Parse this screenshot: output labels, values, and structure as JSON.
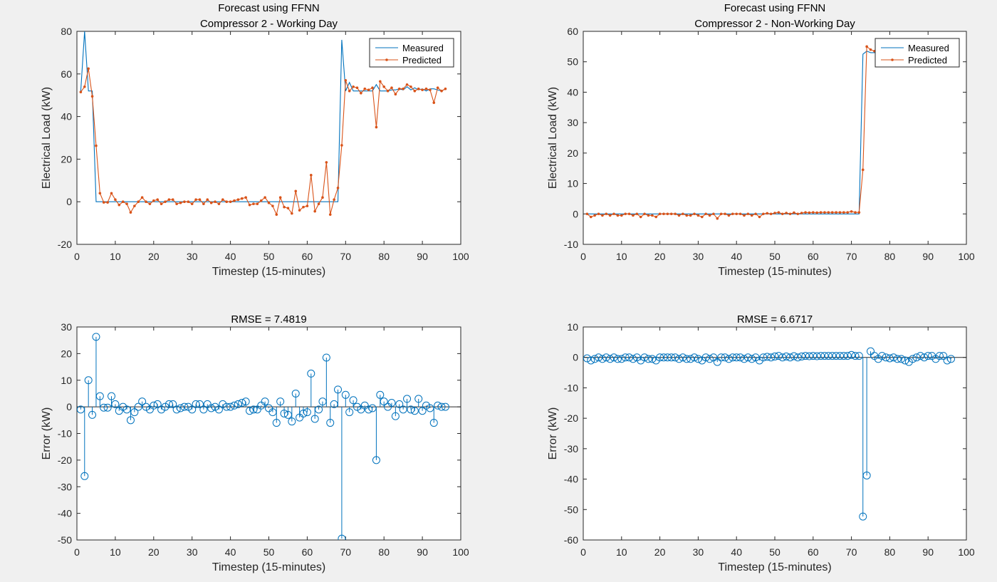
{
  "window": {
    "background": "#f0f0f0"
  },
  "colors": {
    "measured": "#0072BD",
    "predicted": "#D95319",
    "axis": "#262626"
  },
  "chart_data": [
    {
      "id": "top-left",
      "type": "line",
      "title_lines": [
        "Forecast using FFNN",
        "Compressor 2 - Working Day"
      ],
      "xlabel": "Timestep (15-minutes)",
      "ylabel": "Electrical Load (kW)",
      "xlim": [
        0,
        100
      ],
      "ylim": [
        -20,
        80
      ],
      "xticks": [
        0,
        10,
        20,
        30,
        40,
        50,
        60,
        70,
        80,
        90,
        100
      ],
      "yticks": [
        -20,
        0,
        20,
        40,
        60,
        80
      ],
      "legend": {
        "location": "top-right",
        "entries": [
          "Measured",
          "Predicted"
        ]
      },
      "series": [
        {
          "name": "Measured",
          "style": "line",
          "x": [
            1,
            2,
            3,
            4,
            5,
            68,
            69,
            70,
            71,
            72,
            73,
            74,
            75,
            76,
            77,
            78,
            79,
            80,
            81,
            82,
            83,
            84,
            85,
            86,
            87,
            88,
            89,
            90,
            91,
            92,
            93,
            94,
            95,
            96
          ],
          "y": [
            52,
            80,
            52,
            52,
            0,
            0,
            76,
            52,
            56,
            52,
            52,
            52,
            52,
            52,
            52,
            55,
            52,
            52,
            52,
            52.5,
            52.5,
            53,
            52.5,
            54,
            52.5,
            53.5,
            52.5,
            53,
            52,
            53,
            53,
            52.5,
            52,
            53
          ]
        },
        {
          "name": "Predicted",
          "style": "line-dot",
          "x": [
            1,
            2,
            3,
            4,
            5,
            6,
            7,
            8,
            9,
            10,
            11,
            12,
            13,
            14,
            15,
            16,
            17,
            18,
            19,
            20,
            21,
            22,
            23,
            24,
            25,
            26,
            27,
            28,
            29,
            30,
            31,
            32,
            33,
            34,
            35,
            36,
            37,
            38,
            39,
            40,
            41,
            42,
            43,
            44,
            45,
            46,
            47,
            48,
            49,
            50,
            51,
            52,
            53,
            54,
            55,
            56,
            57,
            58,
            59,
            60,
            61,
            62,
            63,
            64,
            65,
            66,
            67,
            68,
            69,
            70,
            71,
            72,
            73,
            74,
            75,
            76,
            77,
            78,
            79,
            80,
            81,
            82,
            83,
            84,
            85,
            86,
            87,
            88,
            89,
            90,
            91,
            92,
            93,
            94,
            95,
            96
          ],
          "y": [
            51.5,
            54,
            62.5,
            49.5,
            26.3,
            4,
            -0.3,
            -0.3,
            4,
            1,
            -1.5,
            0,
            -1,
            -5,
            -2,
            0,
            2,
            0,
            -1,
            0.5,
            1,
            -1,
            0,
            1,
            1,
            -1,
            -0.5,
            0,
            0,
            -1,
            1,
            1,
            -1,
            1,
            -0.5,
            0,
            -1,
            1,
            0,
            0,
            0.5,
            1,
            1.5,
            2,
            -1.5,
            -1,
            -1,
            0.5,
            2,
            -0.5,
            -2,
            -6,
            2,
            -2.5,
            -3,
            -5.5,
            5,
            -4,
            -2.5,
            -2,
            12.5,
            -4.5,
            -1,
            2,
            18.5,
            -6,
            1,
            6.5,
            26.5,
            57,
            52,
            54,
            53.5,
            51,
            53,
            52.5,
            53.5,
            35,
            56.5,
            54,
            52,
            53.5,
            50.5,
            53,
            53,
            55,
            54,
            52,
            53,
            52.5,
            53,
            52.5,
            46.5,
            53.5,
            52,
            53
          ]
        }
      ]
    },
    {
      "id": "top-right",
      "type": "line",
      "title_lines": [
        "Forecast using FFNN",
        "Compressor 2 - Non-Working Day"
      ],
      "xlabel": "Timestep (15-minutes)",
      "ylabel": "Electrical Load (kW)",
      "xlim": [
        0,
        100
      ],
      "ylim": [
        -10,
        60
      ],
      "xticks": [
        0,
        10,
        20,
        30,
        40,
        50,
        60,
        70,
        80,
        90,
        100
      ],
      "yticks": [
        -10,
        0,
        10,
        20,
        30,
        40,
        50,
        60
      ],
      "legend": {
        "location": "top-right",
        "entries": [
          "Measured",
          "Predicted"
        ]
      },
      "series": [
        {
          "name": "Measured",
          "style": "line",
          "x": [
            1,
            72,
            73,
            74,
            75,
            76,
            77,
            78,
            79,
            80,
            81,
            82,
            83,
            84,
            85,
            86,
            87,
            88,
            89,
            90,
            91,
            92,
            93,
            94,
            95,
            96
          ],
          "y": [
            0,
            0,
            52.5,
            53.5,
            53,
            53,
            53,
            53,
            53,
            53,
            53,
            53,
            53,
            53,
            53,
            53,
            53,
            53,
            53,
            53,
            53,
            53,
            53,
            53,
            53,
            53
          ]
        },
        {
          "name": "Predicted",
          "style": "line-dot",
          "x": [
            1,
            2,
            3,
            4,
            5,
            6,
            7,
            8,
            9,
            10,
            11,
            12,
            13,
            14,
            15,
            16,
            17,
            18,
            19,
            20,
            21,
            22,
            23,
            24,
            25,
            26,
            27,
            28,
            29,
            30,
            31,
            32,
            33,
            34,
            35,
            36,
            37,
            38,
            39,
            40,
            41,
            42,
            43,
            44,
            45,
            46,
            47,
            48,
            49,
            50,
            51,
            52,
            53,
            54,
            55,
            56,
            57,
            58,
            59,
            60,
            61,
            62,
            63,
            64,
            65,
            66,
            67,
            68,
            69,
            70,
            71,
            72,
            73,
            74,
            75,
            76,
            77,
            78,
            79,
            80,
            81,
            82,
            83,
            84,
            85,
            86,
            87,
            88,
            89,
            90,
            91,
            92,
            93,
            94,
            95,
            96
          ],
          "y": [
            0,
            -1,
            -0.5,
            0,
            -0.5,
            0,
            -0.5,
            0,
            -0.5,
            -0.5,
            0,
            0,
            -0.5,
            0,
            -1,
            0,
            -0.5,
            -0.5,
            -1,
            0,
            0,
            0,
            0,
            0,
            -0.5,
            0,
            -0.5,
            -0.5,
            0,
            -0.5,
            -1,
            0,
            -0.5,
            0,
            -1.5,
            0,
            0,
            -0.5,
            0,
            0,
            0,
            -0.5,
            0,
            -0.5,
            0,
            -1,
            0,
            0.2,
            0,
            0.3,
            0.5,
            0,
            0.3,
            0,
            0.4,
            0,
            0.3,
            0.5,
            0.4,
            0.5,
            0.4,
            0.5,
            0.5,
            0.5,
            0.5,
            0.5,
            0.5,
            0.5,
            0.5,
            0.8,
            0.5,
            0.5,
            14.5,
            55,
            54,
            53.5,
            53,
            52.5,
            53.5,
            53,
            53,
            53.5,
            52.5,
            53,
            52.5,
            53,
            53.5,
            52.5,
            53,
            53,
            52.5,
            53,
            52.5,
            52.5,
            53.5,
            53
          ]
        }
      ]
    },
    {
      "id": "bottom-left",
      "type": "stem",
      "title_lines": [
        "RMSE = 7.4819"
      ],
      "xlabel": "Timestep (15-minutes)",
      "ylabel": "Error (kW)",
      "xlim": [
        0,
        100
      ],
      "ylim": [
        -50,
        30
      ],
      "xticks": [
        0,
        10,
        20,
        30,
        40,
        50,
        60,
        70,
        80,
        90,
        100
      ],
      "yticks": [
        -50,
        -40,
        -30,
        -20,
        -10,
        0,
        10,
        20,
        30
      ],
      "series": [
        {
          "name": "Error",
          "style": "stem",
          "x": [
            1,
            2,
            3,
            4,
            5,
            6,
            7,
            8,
            9,
            10,
            11,
            12,
            13,
            14,
            15,
            16,
            17,
            18,
            19,
            20,
            21,
            22,
            23,
            24,
            25,
            26,
            27,
            28,
            29,
            30,
            31,
            32,
            33,
            34,
            35,
            36,
            37,
            38,
            39,
            40,
            41,
            42,
            43,
            44,
            45,
            46,
            47,
            48,
            49,
            50,
            51,
            52,
            53,
            54,
            55,
            56,
            57,
            58,
            59,
            60,
            61,
            62,
            63,
            64,
            65,
            66,
            67,
            68,
            69,
            70,
            71,
            72,
            73,
            74,
            75,
            76,
            77,
            78,
            79,
            80,
            81,
            82,
            83,
            84,
            85,
            86,
            87,
            88,
            89,
            90,
            91,
            92,
            93,
            94,
            95,
            96
          ],
          "y": [
            -1,
            -26,
            10,
            -3,
            26.3,
            4,
            -0.3,
            -0.3,
            4,
            1,
            -1.5,
            0,
            -1,
            -5,
            -2,
            0,
            2,
            0,
            -1,
            0.5,
            1,
            -1,
            0,
            1,
            1,
            -1,
            -0.5,
            0,
            0,
            -1,
            1,
            1,
            -1,
            1,
            -0.5,
            0,
            -1,
            1,
            0,
            0,
            0.5,
            1,
            1.5,
            2,
            -1.5,
            -1,
            -1,
            0.5,
            2,
            -0.5,
            -2,
            -6,
            2,
            -2.5,
            -3,
            -5.5,
            5,
            -4,
            -2.5,
            -2,
            12.5,
            -4.5,
            -1,
            2,
            18.5,
            -6,
            1,
            6.5,
            -49.5,
            4.5,
            -2,
            2.5,
            0,
            -1,
            0.5,
            -1,
            -0.5,
            -20,
            4.5,
            2,
            0,
            1.5,
            -3.5,
            1,
            -1,
            3,
            -1,
            -1.5,
            3,
            -1.5,
            0.5,
            -0.5,
            -6,
            0.5,
            0,
            0
          ]
        }
      ]
    },
    {
      "id": "bottom-right",
      "type": "stem",
      "title_lines": [
        "RMSE = 6.6717"
      ],
      "xlabel": "Timestep (15-minutes)",
      "ylabel": "Error (kW)",
      "xlim": [
        0,
        100
      ],
      "ylim": [
        -60,
        10
      ],
      "xticks": [
        0,
        10,
        20,
        30,
        40,
        50,
        60,
        70,
        80,
        90,
        100
      ],
      "yticks": [
        -60,
        -50,
        -40,
        -30,
        -20,
        -10,
        0,
        10
      ],
      "series": [
        {
          "name": "Error",
          "style": "stem",
          "x": [
            1,
            2,
            3,
            4,
            5,
            6,
            7,
            8,
            9,
            10,
            11,
            12,
            13,
            14,
            15,
            16,
            17,
            18,
            19,
            20,
            21,
            22,
            23,
            24,
            25,
            26,
            27,
            28,
            29,
            30,
            31,
            32,
            33,
            34,
            35,
            36,
            37,
            38,
            39,
            40,
            41,
            42,
            43,
            44,
            45,
            46,
            47,
            48,
            49,
            50,
            51,
            52,
            53,
            54,
            55,
            56,
            57,
            58,
            59,
            60,
            61,
            62,
            63,
            64,
            65,
            66,
            67,
            68,
            69,
            70,
            71,
            72,
            73,
            74,
            75,
            76,
            77,
            78,
            79,
            80,
            81,
            82,
            83,
            84,
            85,
            86,
            87,
            88,
            89,
            90,
            91,
            92,
            93,
            94,
            95,
            96
          ],
          "y": [
            -0.3,
            -1,
            -0.5,
            0,
            -0.5,
            0,
            -0.5,
            0,
            -0.5,
            -0.5,
            0,
            0,
            -0.5,
            0,
            -1,
            0,
            -0.5,
            -0.5,
            -1,
            0,
            0,
            0,
            0,
            0,
            -0.5,
            0,
            -0.5,
            -0.5,
            0,
            -0.5,
            -1,
            0,
            -0.5,
            0,
            -1.5,
            0,
            0,
            -0.5,
            0,
            0,
            0,
            -0.5,
            0,
            -0.5,
            0,
            -1,
            0,
            0.2,
            0,
            0.3,
            0.5,
            0,
            0.3,
            0,
            0.4,
            0,
            0.3,
            0.5,
            0.4,
            0.5,
            0.4,
            0.5,
            0.5,
            0.5,
            0.5,
            0.5,
            0.5,
            0.5,
            0.5,
            0.8,
            0.5,
            0.5,
            -52.3,
            -38.8,
            2,
            0.5,
            -0.5,
            0.5,
            0,
            -0.3,
            0,
            -0.5,
            -0.5,
            -1,
            -1.5,
            -0.5,
            0,
            0.5,
            0,
            0.5,
            0.5,
            -0.5,
            0.5,
            0.5,
            -1,
            -0.5
          ]
        }
      ]
    }
  ]
}
